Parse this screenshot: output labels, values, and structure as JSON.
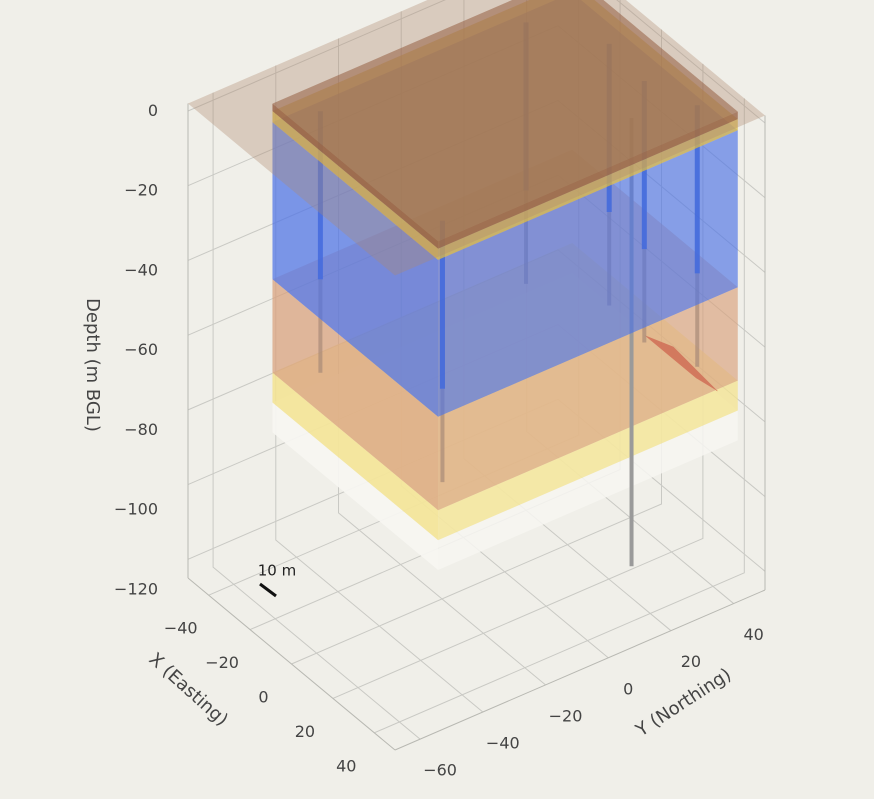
{
  "chart_data": {
    "type": "mesh3d",
    "zaxis_title": "Depth (m BGL)",
    "xaxis_title": "X (Easting)",
    "yaxis_title": "Y (Northing)",
    "annotation": "10 m",
    "xlim": [
      -50,
      50
    ],
    "ylim": [
      -68,
      50
    ],
    "zlim": [
      -125,
      2
    ],
    "zticks": [
      {
        "value": 0,
        "label": "0"
      },
      {
        "value": -20,
        "label": "−20"
      },
      {
        "value": -40,
        "label": "−40"
      },
      {
        "value": -60,
        "label": "−60"
      },
      {
        "value": -80,
        "label": "−80"
      },
      {
        "value": -100,
        "label": "−100"
      },
      {
        "value": -120,
        "label": "−120"
      }
    ],
    "xticks": [
      {
        "value": -40,
        "label": "−40"
      },
      {
        "value": -20,
        "label": "−20"
      },
      0,
      20,
      40
    ],
    "yticks": [
      {
        "value": -60,
        "label": "−60"
      },
      {
        "value": -40,
        "label": "−40"
      },
      {
        "value": -20,
        "label": "−20"
      },
      0,
      20,
      40
    ],
    "grid": true
  }
}
